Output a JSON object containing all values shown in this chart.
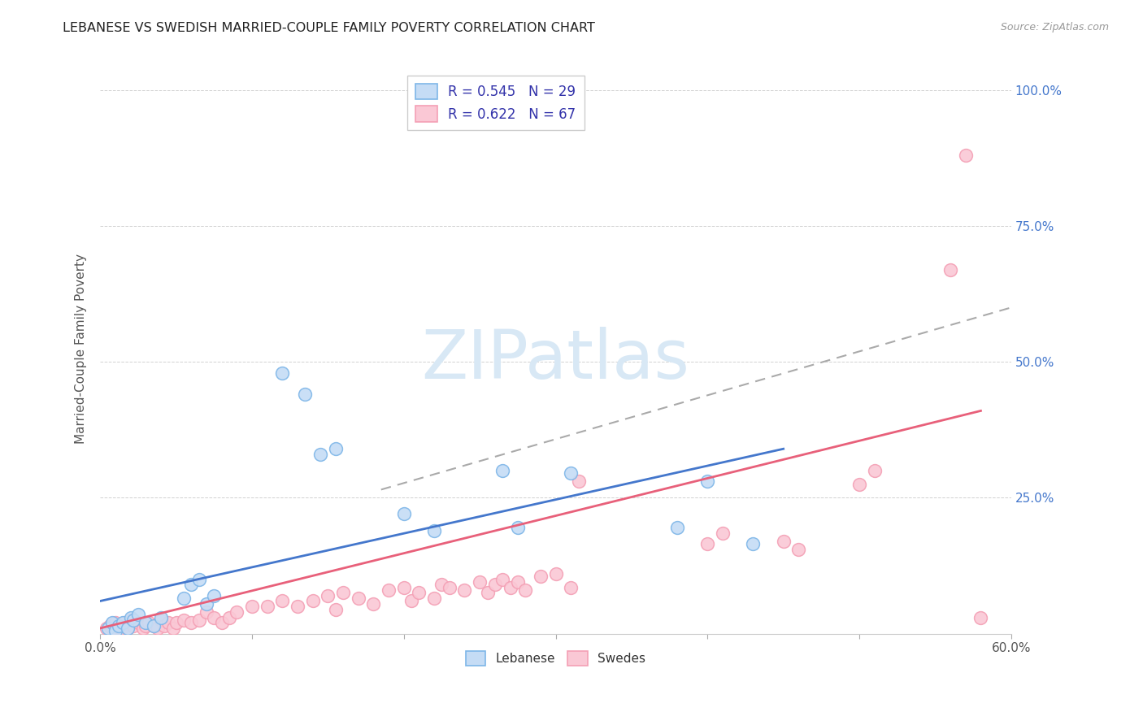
{
  "title": "LEBANESE VS SWEDISH MARRIED-COUPLE FAMILY POVERTY CORRELATION CHART",
  "source": "Source: ZipAtlas.com",
  "ylabel": "Married-Couple Family Poverty",
  "xlim": [
    0,
    0.6
  ],
  "ylim": [
    0,
    1.05
  ],
  "ytick_positions": [
    0.0,
    0.25,
    0.5,
    0.75,
    1.0
  ],
  "ytick_labels_right": [
    "",
    "25.0%",
    "50.0%",
    "75.0%",
    "100.0%"
  ],
  "legend_r_leb": "R = 0.545",
  "legend_n_leb": "N = 29",
  "legend_r_swe": "R = 0.622",
  "legend_n_swe": "N = 67",
  "leb_color": "#7EB6E8",
  "leb_fill": "#C5DCF5",
  "swe_color": "#F4A0B5",
  "swe_fill": "#FAC8D5",
  "trendline_leb_color": "#4477CC",
  "trendline_swe_color": "#E8607A",
  "trendline_dashed_color": "#AAAAAA",
  "watermark": "ZIPatlas",
  "watermark_color": "#D8E8F5",
  "leb_x": [
    0.005,
    0.008,
    0.01,
    0.012,
    0.015,
    0.018,
    0.02,
    0.022,
    0.025,
    0.03,
    0.035,
    0.04,
    0.055,
    0.06,
    0.065,
    0.07,
    0.075,
    0.12,
    0.135,
    0.145,
    0.155,
    0.2,
    0.22,
    0.265,
    0.275,
    0.31,
    0.38,
    0.4,
    0.43
  ],
  "leb_y": [
    0.01,
    0.02,
    0.005,
    0.015,
    0.02,
    0.01,
    0.03,
    0.025,
    0.035,
    0.02,
    0.015,
    0.03,
    0.065,
    0.09,
    0.1,
    0.055,
    0.07,
    0.48,
    0.44,
    0.33,
    0.34,
    0.22,
    0.19,
    0.3,
    0.195,
    0.295,
    0.195,
    0.28,
    0.165
  ],
  "swe_x": [
    0.004,
    0.006,
    0.008,
    0.01,
    0.012,
    0.014,
    0.016,
    0.018,
    0.02,
    0.022,
    0.025,
    0.028,
    0.03,
    0.032,
    0.035,
    0.038,
    0.04,
    0.042,
    0.045,
    0.048,
    0.05,
    0.055,
    0.06,
    0.065,
    0.07,
    0.075,
    0.08,
    0.085,
    0.09,
    0.1,
    0.11,
    0.12,
    0.13,
    0.14,
    0.15,
    0.155,
    0.16,
    0.17,
    0.18,
    0.19,
    0.2,
    0.205,
    0.21,
    0.22,
    0.225,
    0.23,
    0.24,
    0.25,
    0.255,
    0.26,
    0.265,
    0.27,
    0.275,
    0.28,
    0.29,
    0.3,
    0.31,
    0.315,
    0.4,
    0.41,
    0.45,
    0.46,
    0.5,
    0.51,
    0.56,
    0.57,
    0.58
  ],
  "swe_y": [
    0.01,
    0.015,
    0.01,
    0.02,
    0.015,
    0.01,
    0.02,
    0.01,
    0.025,
    0.015,
    0.02,
    0.01,
    0.015,
    0.02,
    0.015,
    0.01,
    0.025,
    0.015,
    0.02,
    0.01,
    0.02,
    0.025,
    0.02,
    0.025,
    0.04,
    0.03,
    0.02,
    0.03,
    0.04,
    0.05,
    0.05,
    0.06,
    0.05,
    0.06,
    0.07,
    0.045,
    0.075,
    0.065,
    0.055,
    0.08,
    0.085,
    0.06,
    0.075,
    0.065,
    0.09,
    0.085,
    0.08,
    0.095,
    0.075,
    0.09,
    0.1,
    0.085,
    0.095,
    0.08,
    0.105,
    0.11,
    0.085,
    0.28,
    0.165,
    0.185,
    0.17,
    0.155,
    0.275,
    0.3,
    0.67,
    0.88,
    0.03
  ],
  "leb_trendline_x": [
    0.0,
    0.45
  ],
  "leb_trendline_y": [
    0.06,
    0.34
  ],
  "swe_trendline_x": [
    0.0,
    0.58
  ],
  "swe_trendline_y": [
    0.01,
    0.41
  ],
  "dashed_trendline_x": [
    0.185,
    0.6
  ],
  "dashed_trendline_y": [
    0.265,
    0.6
  ]
}
